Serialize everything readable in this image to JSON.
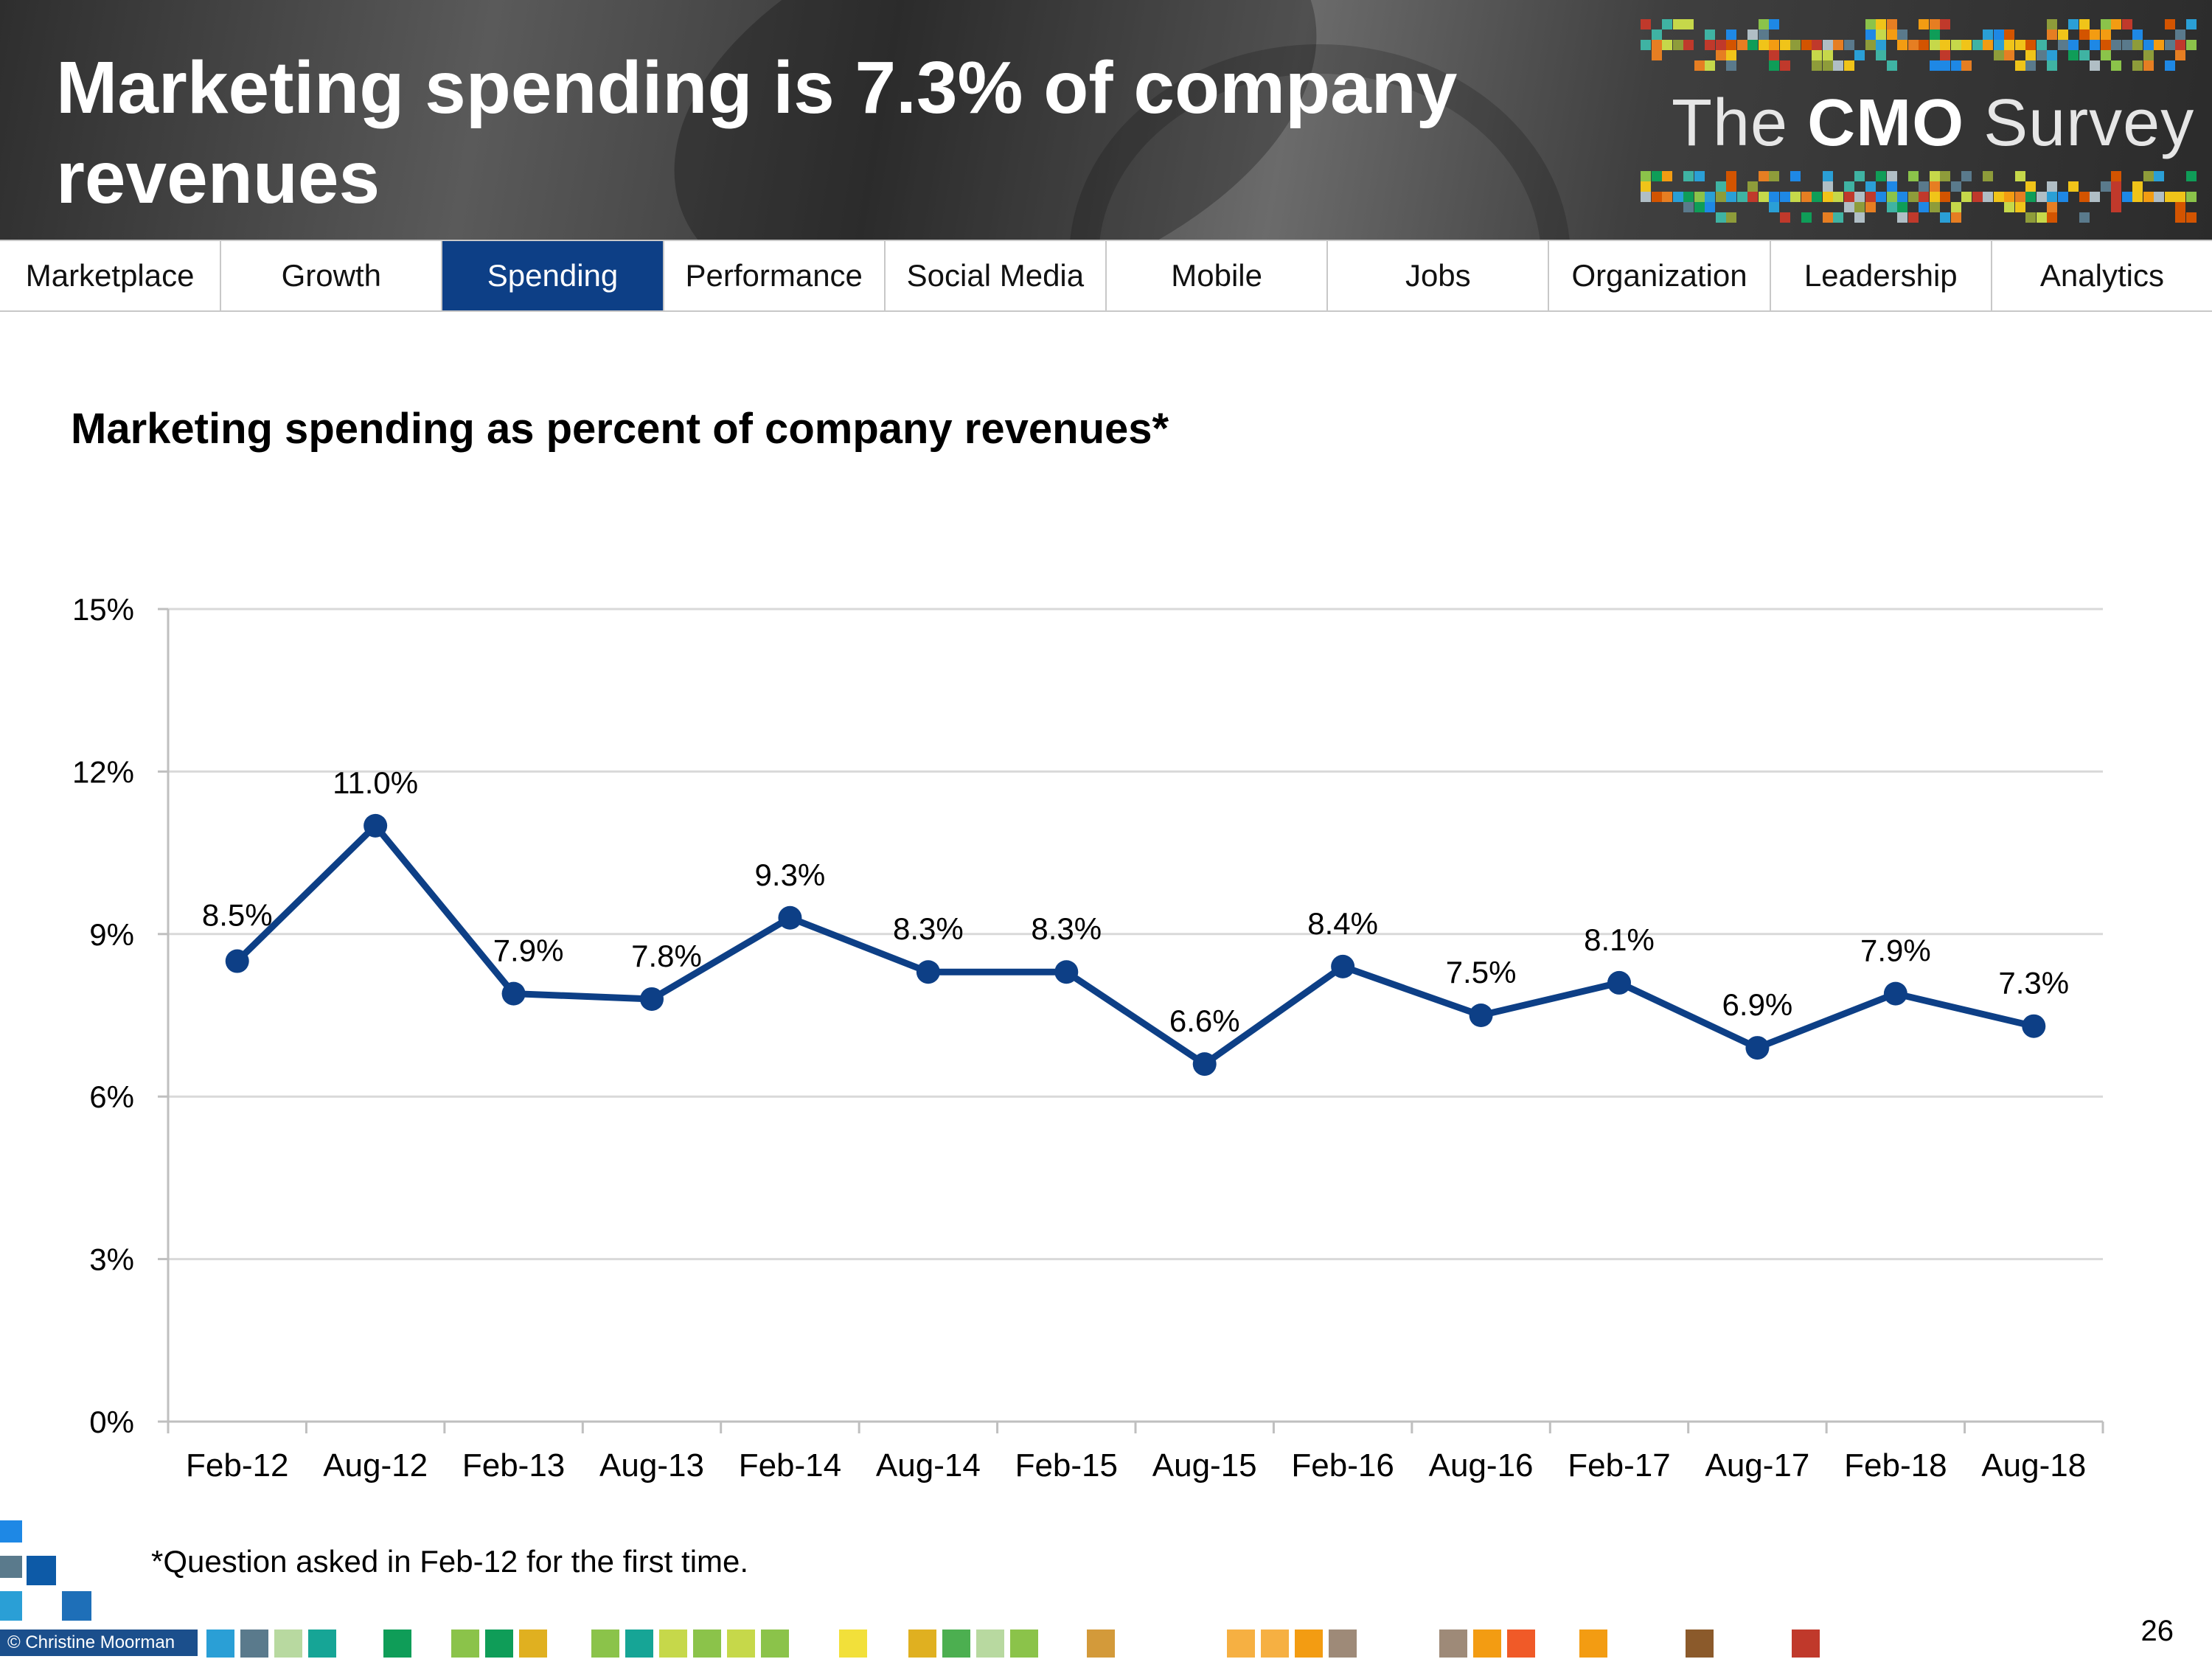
{
  "header": {
    "title": "Marketing spending is 7.3% of company revenues",
    "logo": {
      "prefix": "The",
      "brand": "CMO",
      "suffix": "Survey"
    }
  },
  "nav": {
    "tabs": [
      {
        "label": "Marketplace",
        "active": false
      },
      {
        "label": "Growth",
        "active": false
      },
      {
        "label": "Spending",
        "active": true
      },
      {
        "label": "Performance",
        "active": false
      },
      {
        "label": "Social Media",
        "active": false
      },
      {
        "label": "Mobile",
        "active": false
      },
      {
        "label": "Jobs",
        "active": false
      },
      {
        "label": "Organization",
        "active": false
      },
      {
        "label": "Leadership",
        "active": false
      },
      {
        "label": "Analytics",
        "active": false
      }
    ]
  },
  "chart_data": {
    "type": "line",
    "title": "Marketing spending as percent of company revenues*",
    "xlabel": "",
    "ylabel": "",
    "categories": [
      "Feb-12",
      "Aug-12",
      "Feb-13",
      "Aug-13",
      "Feb-14",
      "Aug-14",
      "Feb-15",
      "Aug-15",
      "Feb-16",
      "Aug-16",
      "Feb-17",
      "Aug-17",
      "Feb-18",
      "Aug-18"
    ],
    "series": [
      {
        "name": "Marketing spending as percent of company revenues",
        "values": [
          8.5,
          11.0,
          7.9,
          7.8,
          9.3,
          8.3,
          8.3,
          6.6,
          8.4,
          7.5,
          8.1,
          6.9,
          7.9,
          7.3
        ],
        "labels": [
          "8.5%",
          "11.0%",
          "7.9%",
          "7.8%",
          "9.3%",
          "8.3%",
          "8.3%",
          "6.6%",
          "8.4%",
          "7.5%",
          "8.1%",
          "6.9%",
          "7.9%",
          "7.3%"
        ],
        "color": "#0d3f86"
      }
    ],
    "yticks": [
      0,
      3,
      6,
      9,
      12,
      15
    ],
    "ytick_labels": [
      "0%",
      "3%",
      "6%",
      "9%",
      "12%",
      "15%"
    ],
    "ylim": [
      0,
      15
    ],
    "grid": true,
    "legend": "none"
  },
  "footnote": "*Question asked in Feb-12 for the first time.",
  "footer": {
    "copyright": "© Christine Moorman",
    "page_number": "26"
  },
  "colors": {
    "accent": "#0d3f86",
    "gridline": "#d9d9d9",
    "axis": "#bfbfbf"
  }
}
